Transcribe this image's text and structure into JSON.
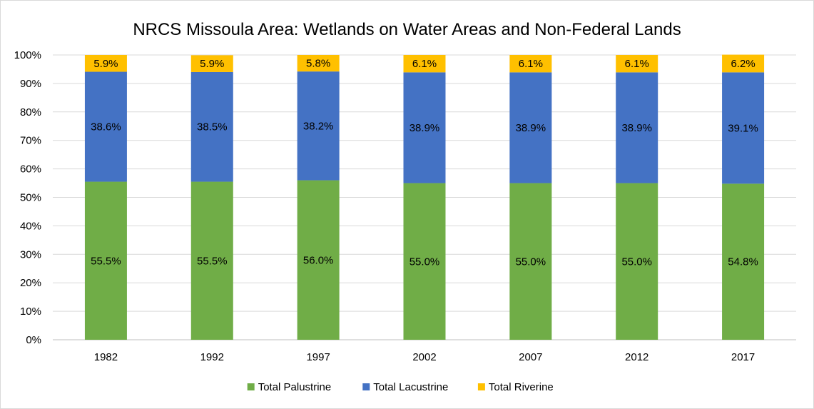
{
  "chart_data": {
    "type": "bar",
    "stacked": true,
    "title": "NRCS Missoula Area: Wetlands on Water Areas and Non-Federal Lands",
    "categories": [
      "1982",
      "1992",
      "1997",
      "2002",
      "2007",
      "2012",
      "2017"
    ],
    "series": [
      {
        "name": "Total Palustrine",
        "color": "#70ad47",
        "values": [
          55.5,
          55.5,
          56.0,
          55.0,
          55.0,
          55.0,
          54.8
        ],
        "labels": [
          "55.5%",
          "55.5%",
          "56.0%",
          "55.0%",
          "55.0%",
          "55.0%",
          "54.8%"
        ]
      },
      {
        "name": "Total Lacustrine",
        "color": "#4472c4",
        "values": [
          38.6,
          38.5,
          38.2,
          38.9,
          38.9,
          38.9,
          39.1
        ],
        "labels": [
          "38.6%",
          "38.5%",
          "38.2%",
          "38.9%",
          "38.9%",
          "38.9%",
          "39.1%"
        ]
      },
      {
        "name": "Total Riverine",
        "color": "#ffc000",
        "values": [
          5.9,
          5.9,
          5.8,
          6.1,
          6.1,
          6.1,
          6.2
        ],
        "labels": [
          "5.9%",
          "5.9%",
          "5.8%",
          "6.1%",
          "6.1%",
          "6.1%",
          "6.2%"
        ]
      }
    ],
    "ylim": [
      0,
      100
    ],
    "yticks": [
      "0%",
      "10%",
      "20%",
      "30%",
      "40%",
      "50%",
      "60%",
      "70%",
      "80%",
      "90%",
      "100%"
    ],
    "xlabel": "",
    "ylabel": "",
    "grid": true,
    "legend_position": "bottom"
  }
}
